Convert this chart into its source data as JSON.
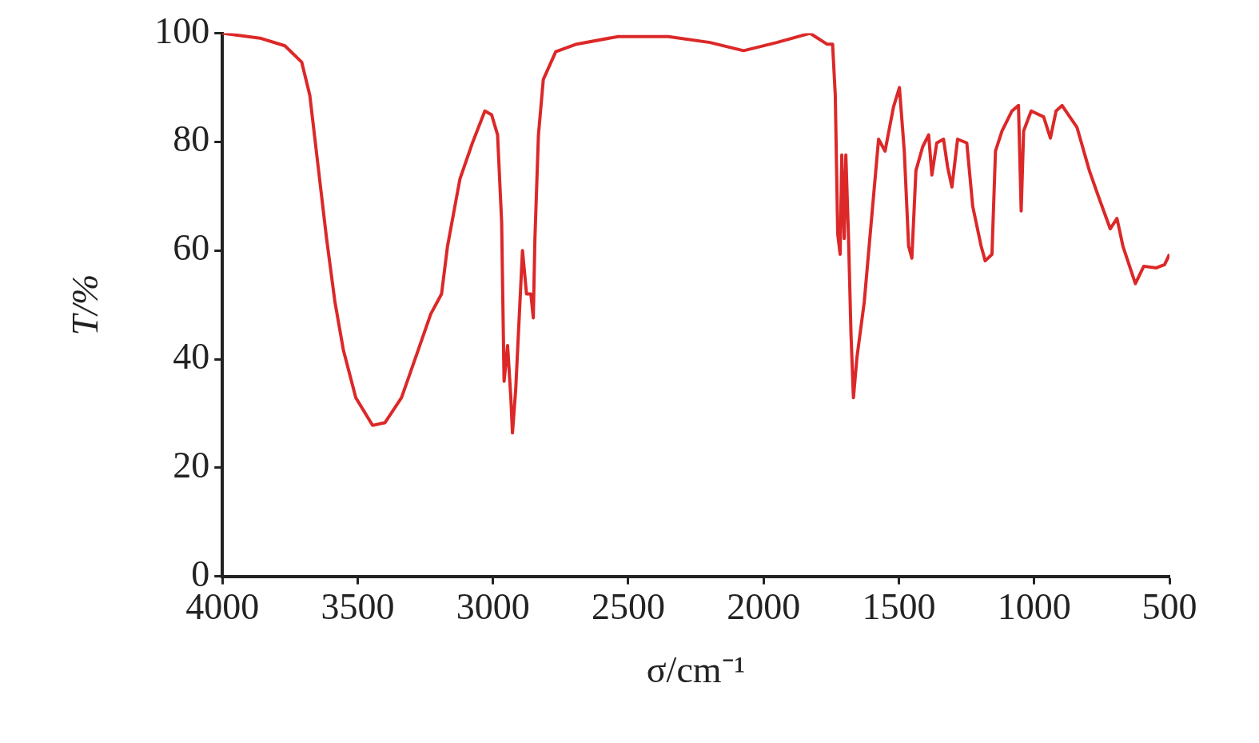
{
  "chart_data": {
    "type": "line",
    "xlabel": "σ/cm⁻¹",
    "ylabel": "T/%",
    "xlim": [
      4000,
      500
    ],
    "xticks": [
      4000,
      3500,
      3000,
      2500,
      2000,
      1500,
      1000,
      500
    ],
    "ylim": [
      0,
      100
    ],
    "yticks": [
      0,
      20,
      40,
      60,
      80,
      100
    ],
    "grid": false,
    "legend": false,
    "marker": "none",
    "line_style": "solid",
    "series": [
      {
        "color": "#dc2828",
        "x": [
          4000,
          3861,
          3769,
          3707,
          3677,
          3646,
          3615,
          3584,
          3553,
          3507,
          3445,
          3399,
          3338,
          3276,
          3230,
          3190,
          3168,
          3122,
          3076,
          3030,
          3005,
          2983,
          2968,
          2959,
          2946,
          2934,
          2928,
          2916,
          2906,
          2891,
          2876,
          2860,
          2851,
          2845,
          2832,
          2814,
          2768,
          2691,
          2537,
          2352,
          2198,
          2074,
          1951,
          1828,
          1766,
          1745,
          1735,
          1726,
          1717,
          1711,
          1702,
          1696,
          1686,
          1677,
          1668,
          1655,
          1628,
          1597,
          1575,
          1551,
          1520,
          1498,
          1480,
          1464,
          1452,
          1437,
          1412,
          1390,
          1378,
          1360,
          1335,
          1320,
          1304,
          1283,
          1249,
          1227,
          1196,
          1181,
          1156,
          1143,
          1119,
          1082,
          1058,
          1048,
          1039,
          1011,
          965,
          940,
          919,
          897,
          842,
          796,
          765,
          719,
          694,
          672,
          626,
          595,
          549,
          518,
          500
        ],
        "values": [
          100,
          99.1,
          97.7,
          94.7,
          88.6,
          75.4,
          62.2,
          50.5,
          41.7,
          32.9,
          27.8,
          28.3,
          32.9,
          41.7,
          48.3,
          52,
          60.8,
          73.2,
          79.8,
          85.7,
          85,
          81.3,
          65.2,
          35.9,
          42.5,
          32.9,
          26.4,
          34.4,
          44.7,
          60,
          52,
          52,
          47.6,
          62.2,
          81.3,
          91.5,
          96.6,
          98,
          99.4,
          99.4,
          98.3,
          96.8,
          98.3,
          100,
          98,
          98,
          88.6,
          63,
          59.3,
          77.6,
          62.2,
          77.6,
          62.2,
          44.7,
          32.9,
          40.3,
          50.5,
          68.1,
          80.5,
          78.3,
          86.4,
          90,
          78.3,
          60.8,
          58.6,
          74.7,
          79.1,
          81.3,
          73.9,
          79.8,
          80.5,
          75.4,
          71.7,
          80.5,
          79.8,
          68.1,
          60.8,
          58.1,
          59.3,
          78.3,
          82,
          85.7,
          86.7,
          67.3,
          82,
          85.7,
          84.6,
          80.7,
          85.7,
          86.7,
          82.7,
          74.7,
          70.3,
          64,
          65.9,
          60.8,
          53.9,
          57.1,
          56.8,
          57.4,
          59.3
        ]
      }
    ]
  }
}
